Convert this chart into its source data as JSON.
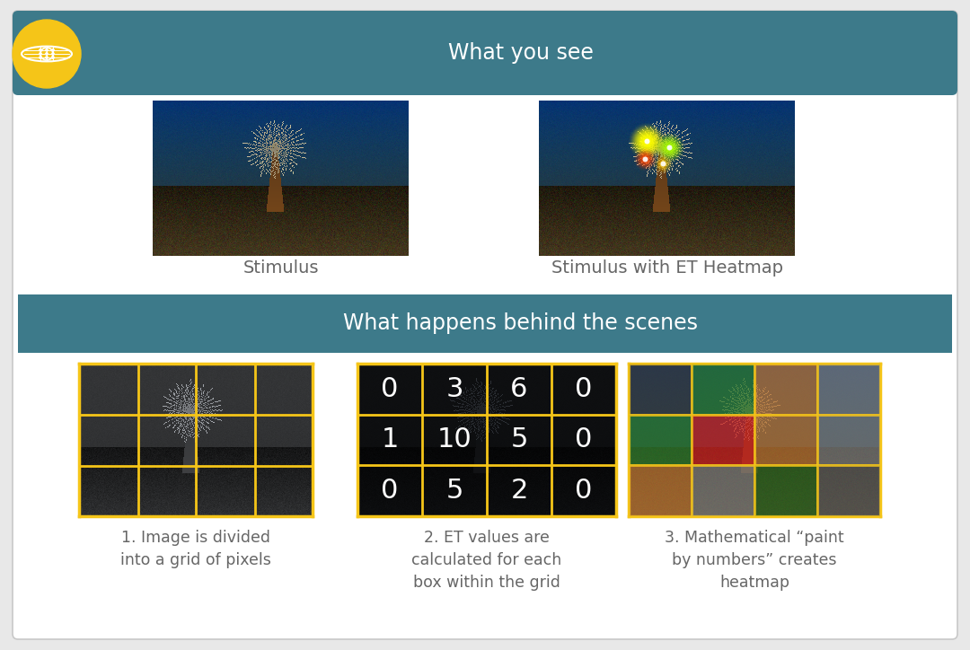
{
  "bg_color": "#e8e8e8",
  "header_color": "#3d7a8a",
  "header_text_color": "#ffffff",
  "panel_bg": "#ffffff",
  "border_color": "#cccccc",
  "icon_color": "#f5c518",
  "header1_text": "What you see",
  "header2_text": "What happens behind the scenes",
  "label1": "Stimulus",
  "label2": "Stimulus with ET Heatmap",
  "label3": "1. Image is divided\ninto a grid of pixels",
  "label4": "2. ET values are\ncalculated for each\nbox within the grid",
  "label5": "3. Mathematical “paint\nby numbers” creates\nheatmap",
  "grid_border_color": "#f5c518",
  "grid_values": [
    [
      0,
      3,
      6,
      0
    ],
    [
      1,
      10,
      5,
      0
    ],
    [
      0,
      5,
      2,
      0
    ]
  ],
  "heatmap_colors": [
    [
      "#3a3a3a",
      "#2d7a2d",
      "#b87333",
      "#7a7a7a"
    ],
    [
      "#2d7a2d",
      "#cc2222",
      "#b87333",
      "#7a7a7a"
    ],
    [
      "#b87333",
      "#7a7a7a",
      "#2d6622",
      "#5a5a5a"
    ]
  ],
  "header_fontsize": 17,
  "label_fontsize": 13,
  "text_color": "#666666"
}
